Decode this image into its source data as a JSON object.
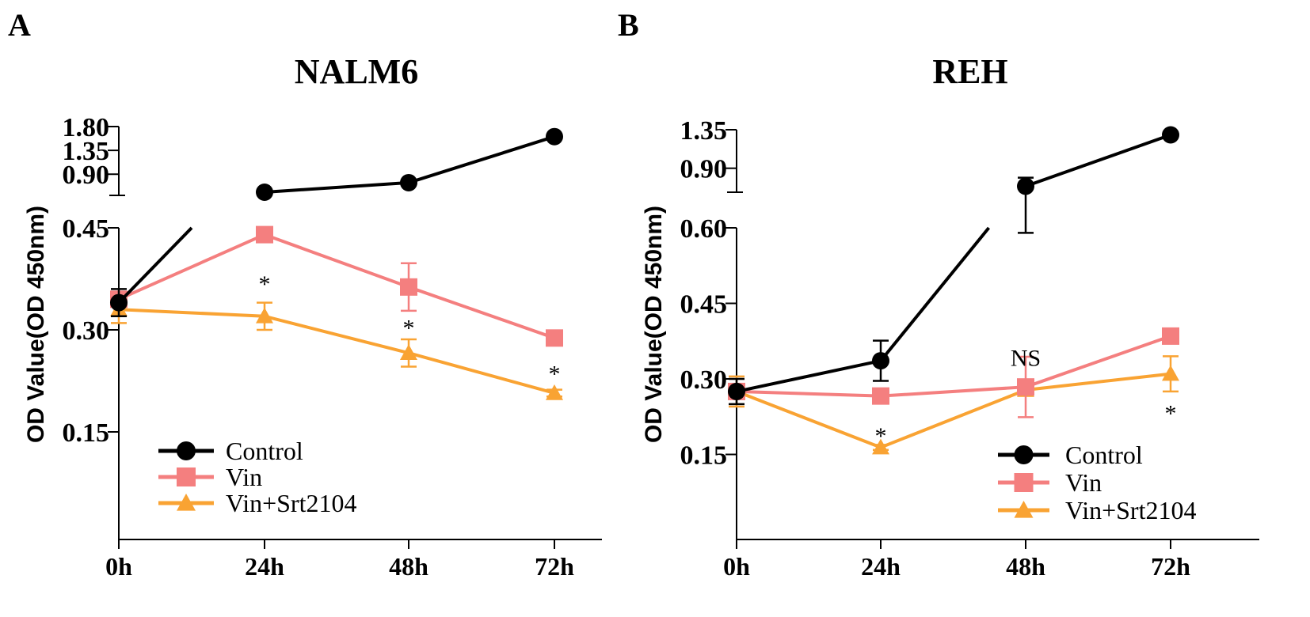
{
  "chart_data": [
    {
      "type": "line",
      "panel_label": "A",
      "title": "NALM6",
      "ylabel": "OD Value(OD 450nm)",
      "xlabel": "",
      "categories": [
        "0h",
        "24h",
        "48h",
        "72h"
      ],
      "y_axis_broken": true,
      "ylim_lower": [
        0,
        0.45
      ],
      "ylim_upper": [
        0.5,
        1.8
      ],
      "yticks_lower": [
        "0.15",
        "0.30",
        "0.45"
      ],
      "yticks_upper": [
        "0.90",
        "1.35",
        "1.80"
      ],
      "series": [
        {
          "name": "Control",
          "color": "#000000",
          "marker": "circle",
          "values": [
            0.34,
            0.56,
            0.74,
            1.61
          ],
          "errors": [
            0.02,
            0,
            0,
            0
          ]
        },
        {
          "name": "Vin",
          "color": "#F47F7F",
          "marker": "square",
          "values": [
            0.345,
            0.44,
            0.363,
            0.288
          ],
          "errors": [
            0.01,
            0.01,
            0.035,
            0.008
          ]
        },
        {
          "name": "Vin+Srt2104",
          "color": "#F9A333",
          "marker": "triangle",
          "values": [
            0.33,
            0.32,
            0.266,
            0.207
          ],
          "errors": [
            0.02,
            0.02,
            0.02,
            0.005
          ]
        }
      ],
      "annotations": [
        {
          "x": "24h",
          "text": "*",
          "y": 0.37
        },
        {
          "x": "48h",
          "text": "*",
          "y": 0.305
        },
        {
          "x": "72h",
          "text": "*",
          "y": 0.238
        }
      ],
      "legend": "bottom-left",
      "grid": false
    },
    {
      "type": "line",
      "panel_label": "B",
      "title": "REH",
      "ylabel": "OD Value(OD 450nm)",
      "xlabel": "",
      "categories": [
        "0h",
        "24h",
        "48h",
        "72h"
      ],
      "y_axis_broken": true,
      "ylim_lower": [
        0,
        0.6
      ],
      "ylim_upper": [
        0.62,
        1.35
      ],
      "yticks_lower": [
        "0.15",
        "0.30",
        "0.45",
        "0.60"
      ],
      "yticks_upper": [
        "0.90",
        "1.35"
      ],
      "series": [
        {
          "name": "Control",
          "color": "#000000",
          "marker": "circle",
          "values": [
            0.275,
            0.336,
            0.69,
            1.29
          ],
          "errors": [
            0.025,
            0.04,
            0.1,
            0
          ]
        },
        {
          "name": "Vin",
          "color": "#F47F7F",
          "marker": "square",
          "values": [
            0.275,
            0.266,
            0.284,
            0.385
          ],
          "errors": [
            0.01,
            0,
            0.06,
            0
          ]
        },
        {
          "name": "Vin+Srt2104",
          "color": "#F9A333",
          "marker": "triangle",
          "values": [
            0.275,
            0.164,
            0.278,
            0.31
          ],
          "errors": [
            0.03,
            0.005,
            0.01,
            0.035
          ]
        }
      ],
      "annotations": [
        {
          "x": "24h",
          "text": "*",
          "y": 0.19
        },
        {
          "x": "48h",
          "text": "NS",
          "y": 0.345
        },
        {
          "x": "72h",
          "text": "*",
          "y": 0.235
        }
      ],
      "legend": "bottom-right",
      "grid": false
    }
  ]
}
